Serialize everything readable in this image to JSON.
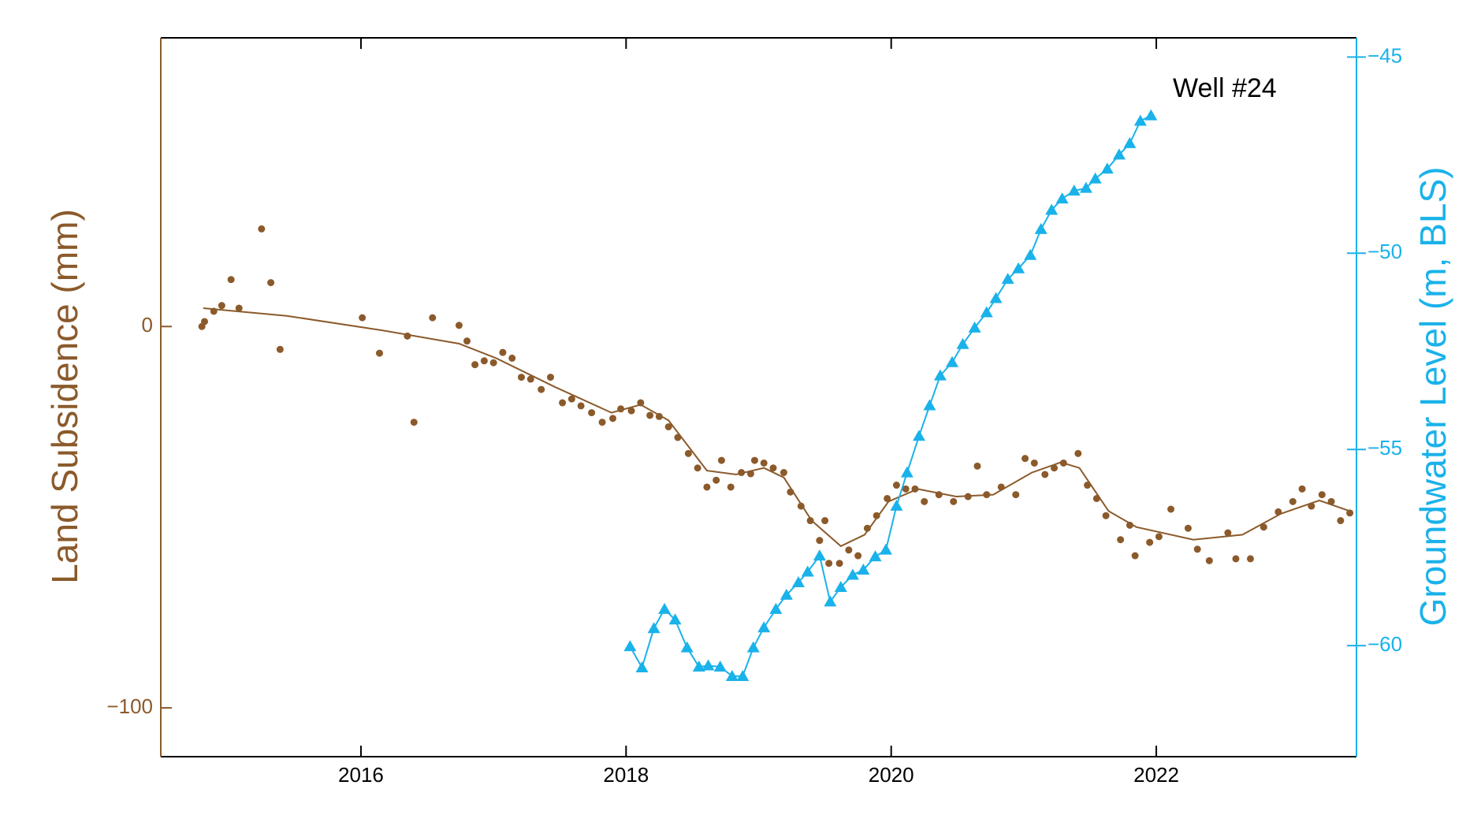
{
  "chart_data": {
    "type": "line",
    "title": "Well #24",
    "y_label": "Land Subsidence (mm)",
    "y2_label": "Groundwater Level (m, BLS)",
    "y_color": "#8b5a2b",
    "y2_color": "#1ab2ea",
    "xlim": [
      2014.49,
      2023.51
    ],
    "xticks": [
      2016,
      2018,
      2020,
      2022
    ],
    "ylim": [
      -112.8,
      75.7
    ],
    "yticks": [
      {
        "value": -100,
        "label": "−100"
      },
      0
    ],
    "y2lim": [
      -62.83,
      -44.51
    ],
    "y2ticks": [
      {
        "value": -60,
        "label": "−60"
      },
      {
        "value": -55,
        "label": "−55"
      },
      {
        "value": -50,
        "label": "−50"
      },
      {
        "value": -45,
        "label": "−45"
      }
    ],
    "series": [
      {
        "color": "#8b5a2b",
        "marker": "circle",
        "line": false,
        "x": [
          2014.8,
          2014.82,
          2014.89,
          2014.95,
          2015.02,
          2015.08,
          2015.25,
          2015.32,
          2015.39,
          2016.01,
          2016.14,
          2016.35,
          2016.4,
          2016.54,
          2016.74,
          2016.8,
          2016.86,
          2016.93,
          2017.0,
          2017.07,
          2017.14,
          2017.21,
          2017.28,
          2017.36,
          2017.43,
          2017.52,
          2017.59,
          2017.66,
          2017.74,
          2017.82,
          2017.9,
          2017.96,
          2018.04,
          2018.11,
          2018.18,
          2018.25,
          2018.32,
          2018.39,
          2018.47,
          2018.54,
          2018.61,
          2018.68,
          2018.72,
          2018.79,
          2018.87,
          2018.94,
          2018.97,
          2019.04,
          2019.11,
          2019.19,
          2019.24,
          2019.32,
          2019.39,
          2019.46,
          2019.5,
          2019.53,
          2019.61,
          2019.68,
          2019.75,
          2019.82,
          2019.89,
          2019.97,
          2020.04,
          2020.11,
          2020.18,
          2020.25,
          2020.36,
          2020.47,
          2020.58,
          2020.65,
          2020.72,
          2020.83,
          2020.94,
          2021.01,
          2021.08,
          2021.16,
          2021.23,
          2021.3,
          2021.41,
          2021.48,
          2021.55,
          2021.62,
          2021.73,
          2021.8,
          2021.84,
          2021.95,
          2022.02,
          2022.11,
          2022.24,
          2022.31,
          2022.4,
          2022.54,
          2022.6,
          2022.71,
          2022.81,
          2022.92,
          2023.03,
          2023.1,
          2023.17,
          2023.25,
          2023.32,
          2023.39,
          2023.46
        ],
        "values": [
          0,
          1.3,
          4.0,
          5.5,
          12.3,
          4.8,
          25.6,
          11.5,
          -6.0,
          2.3,
          -7.0,
          -2.5,
          -25.1,
          2.3,
          0.3,
          -3.8,
          -10.0,
          -9.0,
          -9.5,
          -6.8,
          -8.3,
          -13.3,
          -13.8,
          -16.5,
          -13.3,
          -20.0,
          -19.0,
          -20.8,
          -22.6,
          -25.1,
          -24.1,
          -21.6,
          -22.1,
          -20.0,
          -23.3,
          -23.6,
          -26.3,
          -29.1,
          -33.3,
          -37.1,
          -42.1,
          -40.3,
          -35.1,
          -42.1,
          -38.3,
          -38.6,
          -35.1,
          -35.8,
          -37.1,
          -38.3,
          -43.4,
          -47.1,
          -50.9,
          -56.1,
          -50.9,
          -62.1,
          -62.1,
          -58.6,
          -60.1,
          -52.9,
          -49.6,
          -45.1,
          -41.6,
          -42.6,
          -42.6,
          -45.9,
          -44.1,
          -45.9,
          -44.6,
          -36.6,
          -44.1,
          -42.1,
          -44.1,
          -34.6,
          -35.8,
          -38.8,
          -37.1,
          -35.8,
          -33.3,
          -41.6,
          -45.1,
          -49.6,
          -55.9,
          -52.1,
          -60.1,
          -56.6,
          -55.1,
          -47.9,
          -52.9,
          -58.4,
          -61.4,
          -54.1,
          -60.9,
          -60.9,
          -52.6,
          -48.6,
          -45.9,
          -42.6,
          -47.1,
          -44.1,
          -45.9,
          -50.9,
          -48.9
        ]
      },
      {
        "color": "#8b5a2b",
        "marker": "none",
        "line": true,
        "x": [
          2014.81,
          2015.44,
          2016.16,
          2016.74,
          2017.02,
          2017.46,
          2017.89,
          2018.11,
          2018.32,
          2018.61,
          2018.83,
          2019.04,
          2019.19,
          2019.4,
          2019.62,
          2019.8,
          2019.98,
          2020.2,
          2020.49,
          2020.77,
          2021.06,
          2021.28,
          2021.42,
          2021.64,
          2021.85,
          2022.28,
          2022.65,
          2022.94,
          2023.23,
          2023.46
        ],
        "values": [
          4.8,
          2.8,
          -1.0,
          -4.5,
          -8.3,
          -15.8,
          -22.6,
          -20.5,
          -24.6,
          -37.8,
          -38.8,
          -37.1,
          -39.6,
          -50.9,
          -57.6,
          -54.6,
          -45.9,
          -42.6,
          -44.6,
          -44.1,
          -38.3,
          -35.6,
          -37.1,
          -48.4,
          -52.6,
          -55.9,
          -54.6,
          -49.1,
          -45.6,
          -48.4
        ]
      },
      {
        "color": "#1ab2ea",
        "marker": "triangle",
        "line": true,
        "axis": "y2",
        "x": [
          2018.03,
          2018.12,
          2018.21,
          2018.29,
          2018.37,
          2018.46,
          2018.55,
          2018.62,
          2018.71,
          2018.8,
          2018.88,
          2018.96,
          2019.04,
          2019.13,
          2019.21,
          2019.3,
          2019.37,
          2019.46,
          2019.54,
          2019.62,
          2019.71,
          2019.79,
          2019.88,
          2019.96,
          2020.04,
          2020.12,
          2020.21,
          2020.29,
          2020.37,
          2020.46,
          2020.54,
          2020.63,
          2020.72,
          2020.79,
          2020.88,
          2020.96,
          2021.05,
          2021.13,
          2021.21,
          2021.29,
          2021.38,
          2021.47,
          2021.54,
          2021.63,
          2021.72,
          2021.8,
          2021.88,
          2021.96
        ],
        "values": [
          -60.02,
          -60.56,
          -59.56,
          -59.07,
          -59.34,
          -60.05,
          -60.54,
          -60.51,
          -60.54,
          -60.78,
          -60.78,
          -60.05,
          -59.54,
          -59.07,
          -58.71,
          -58.39,
          -58.12,
          -57.71,
          -58.88,
          -58.51,
          -58.2,
          -58.07,
          -57.73,
          -57.56,
          -56.44,
          -55.59,
          -54.66,
          -53.88,
          -53.12,
          -52.78,
          -52.32,
          -51.9,
          -51.51,
          -51.15,
          -50.66,
          -50.39,
          -50.05,
          -49.39,
          -48.9,
          -48.61,
          -48.41,
          -48.34,
          -48.1,
          -47.85,
          -47.49,
          -47.2,
          -46.63,
          -46.49
        ]
      }
    ]
  }
}
